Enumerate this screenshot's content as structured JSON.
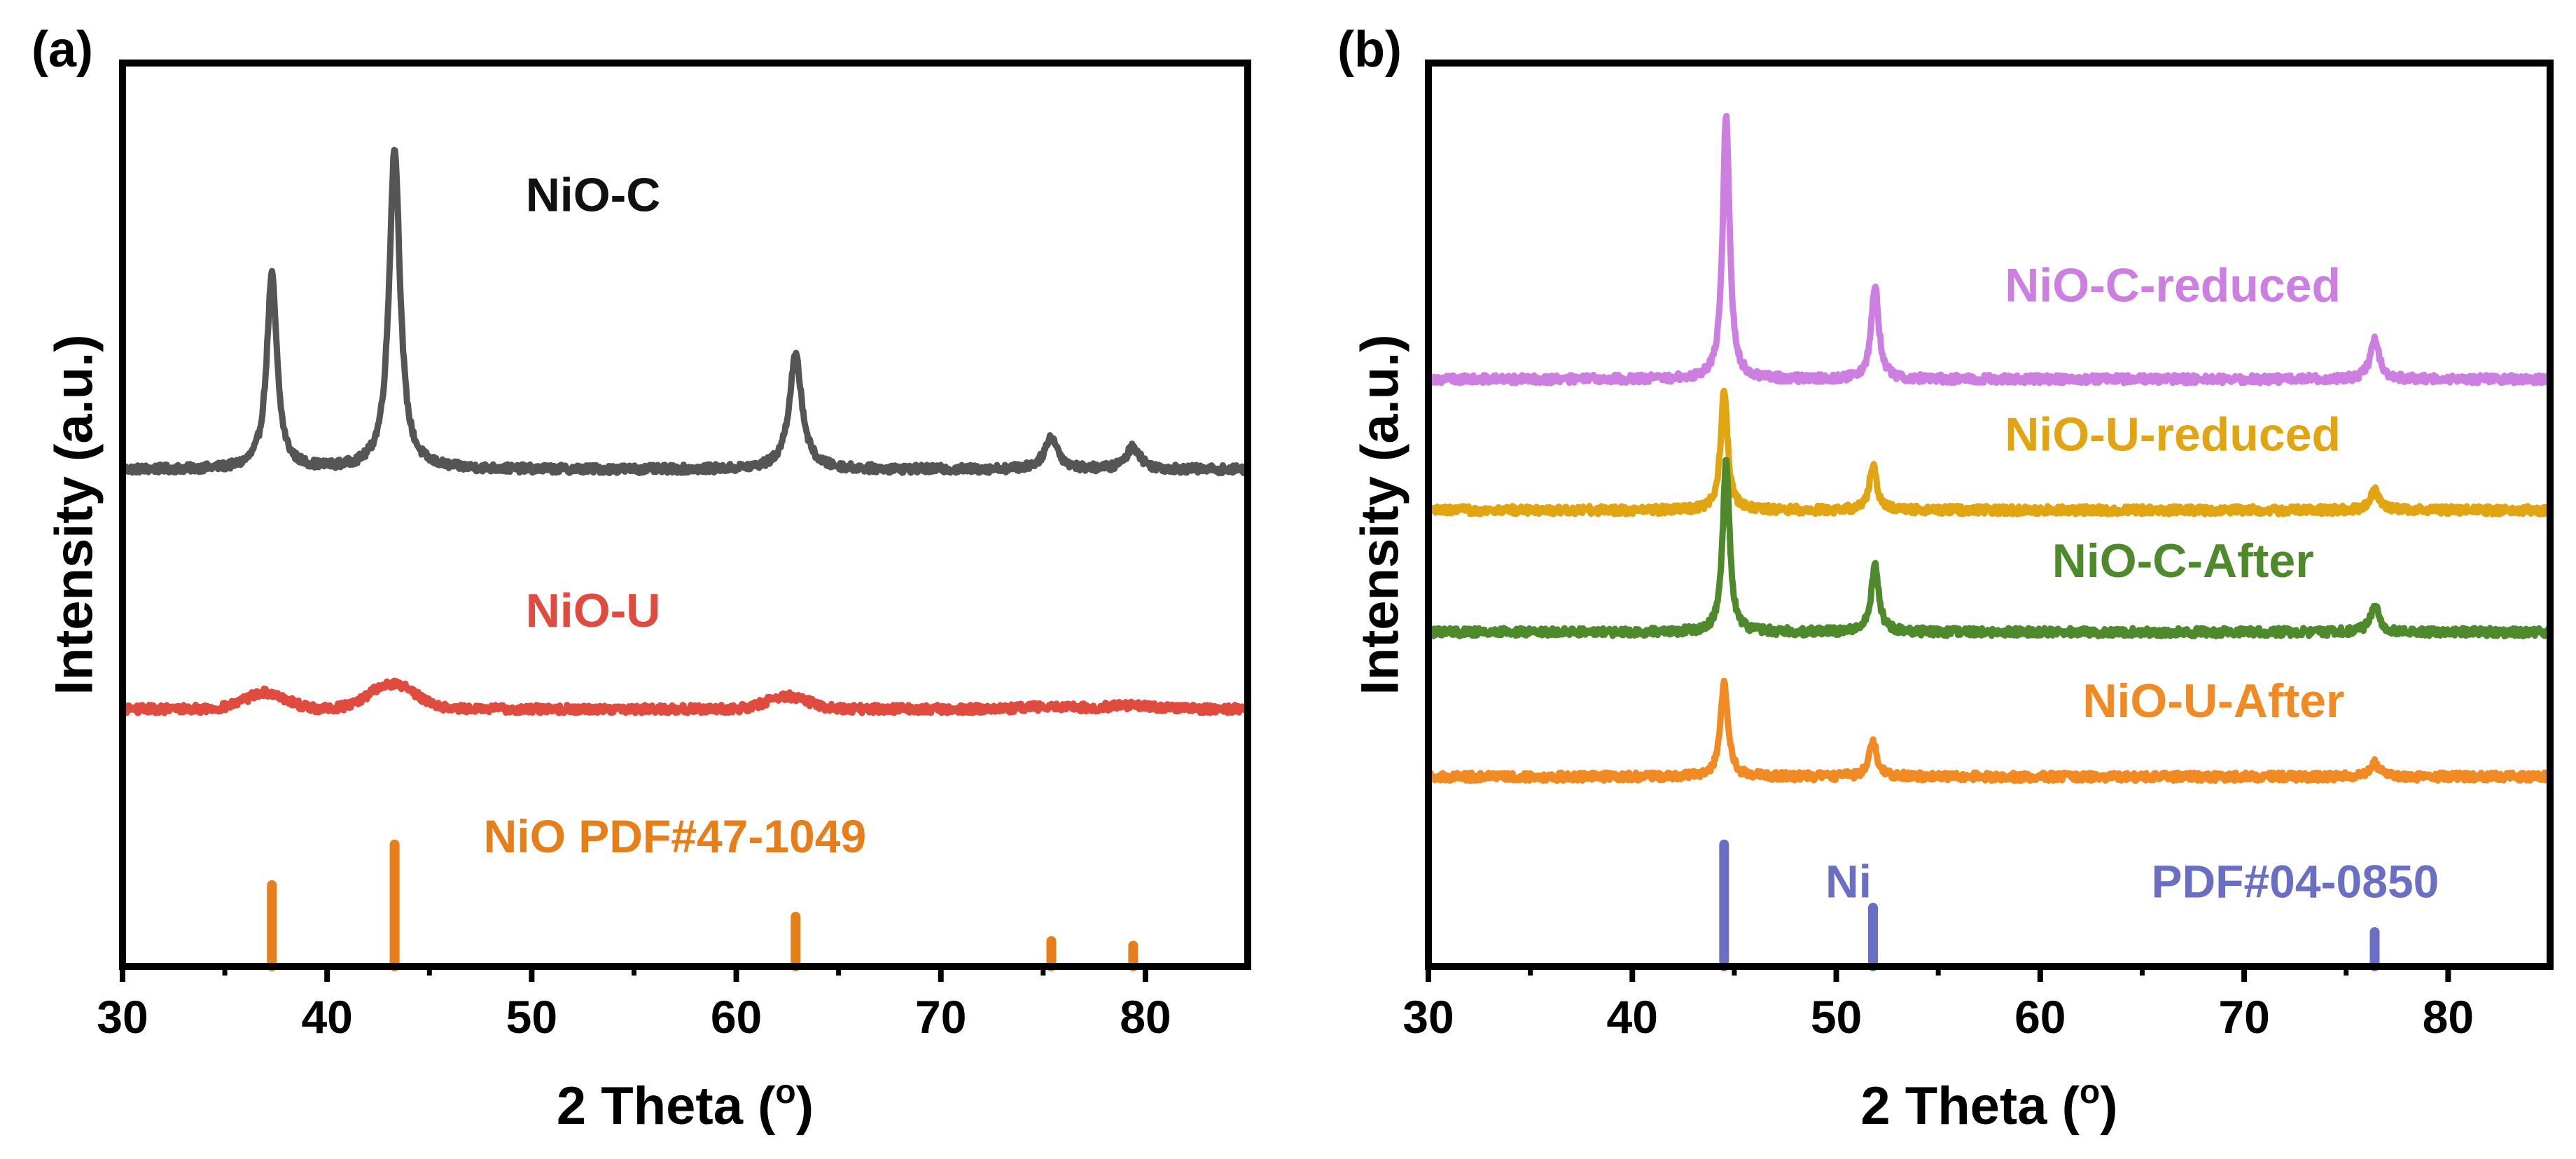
{
  "chart_data": [
    {
      "type": "line",
      "panel_label": "(a)",
      "xlabel": "2 Theta (",
      "xlabel_sup": "o",
      "xlabel_end": ")",
      "ylabel": "Intensity (a.u.)",
      "xlim": [
        30,
        85
      ],
      "ylim": [
        0,
        100
      ],
      "xticks": [
        30,
        40,
        50,
        60,
        70,
        80
      ],
      "minor_xticks": [
        35,
        45,
        55,
        65,
        75
      ],
      "series": [
        {
          "name": "NiO-C",
          "color": "#555555",
          "baseline": 55,
          "label_pos": [
            53,
            85
          ],
          "label_anchor": "middle",
          "peaks": [
            {
              "x": 37.3,
              "height": 21.5,
              "width": 0.3
            },
            {
              "x": 43.3,
              "height": 35.5,
              "width": 0.32
            },
            {
              "x": 62.9,
              "height": 12.5,
              "width": 0.38
            },
            {
              "x": 75.4,
              "height": 3.5,
              "width": 0.4
            },
            {
              "x": 79.4,
              "height": 2.5,
              "width": 0.4
            }
          ],
          "broad": []
        },
        {
          "name": "NiO-U",
          "color": "#E04B3F",
          "baseline": 28.5,
          "label_pos": [
            53,
            39
          ],
          "label_anchor": "middle",
          "peaks": [],
          "broad": [
            {
              "x": 37.0,
              "height": 1.8,
              "width": 1.4
            },
            {
              "x": 43.2,
              "height": 2.8,
              "width": 1.6
            },
            {
              "x": 62.5,
              "height": 1.4,
              "width": 1.4
            },
            {
              "x": 75.4,
              "height": 0.3,
              "width": 1.6
            },
            {
              "x": 79.3,
              "height": 0.4,
              "width": 1.6
            }
          ]
        }
      ],
      "reference": {
        "name": "NiO PDF#47-1049",
        "color": "#E67E1A",
        "label_pos": [
          57,
          14
        ],
        "label_anchor": "middle",
        "lines": [
          {
            "x": 37.3,
            "height": 9.0
          },
          {
            "x": 43.3,
            "height": 13.5
          },
          {
            "x": 62.9,
            "height": 5.5
          },
          {
            "x": 75.4,
            "height": 2.8
          },
          {
            "x": 79.4,
            "height": 2.3
          }
        ]
      }
    },
    {
      "type": "line",
      "panel_label": "(b)",
      "xlabel": "2 Theta (",
      "xlabel_sup": "o",
      "xlabel_end": ")",
      "ylabel": "Intensity (a.u.)",
      "xlim": [
        30,
        85
      ],
      "ylim": [
        0,
        100
      ],
      "xticks": [
        30,
        40,
        50,
        60,
        70,
        80
      ],
      "minor_xticks": [
        35,
        45,
        55,
        65,
        75
      ],
      "series": [
        {
          "name": "NiO-C-reduced",
          "color": "#CC7FE0",
          "baseline": 65,
          "label_pos": [
            66.5,
            75
          ],
          "label_anchor": "middle",
          "peaks": [
            {
              "x": 44.6,
              "height": 29.5,
              "width": 0.2
            },
            {
              "x": 51.9,
              "height": 10.5,
              "width": 0.22
            },
            {
              "x": 76.4,
              "height": 4.5,
              "width": 0.26
            }
          ],
          "broad": []
        },
        {
          "name": "NiO-U-reduced",
          "color": "#E2A512",
          "baseline": 50.5,
          "label_pos": [
            66.5,
            58.5
          ],
          "label_anchor": "middle",
          "peaks": [
            {
              "x": 44.5,
              "height": 13.5,
              "width": 0.2
            },
            {
              "x": 51.8,
              "height": 5.0,
              "width": 0.22
            },
            {
              "x": 76.4,
              "height": 2.2,
              "width": 0.26
            }
          ],
          "broad": []
        },
        {
          "name": "NiO-C-After",
          "color": "#4E8A2C",
          "baseline": 37,
          "label_pos": [
            67,
            44.5
          ],
          "label_anchor": "middle",
          "peaks": [
            {
              "x": 44.6,
              "height": 19.0,
              "width": 0.2
            },
            {
              "x": 51.9,
              "height": 7.5,
              "width": 0.22
            },
            {
              "x": 76.4,
              "height": 3.0,
              "width": 0.26
            }
          ],
          "broad": []
        },
        {
          "name": "NiO-U-After",
          "color": "#F28A23",
          "baseline": 21,
          "label_pos": [
            68.5,
            29
          ],
          "label_anchor": "middle",
          "peaks": [
            {
              "x": 44.5,
              "height": 10.5,
              "width": 0.22
            },
            {
              "x": 51.8,
              "height": 3.8,
              "width": 0.24
            },
            {
              "x": 76.4,
              "height": 1.6,
              "width": 0.26
            }
          ],
          "broad": []
        }
      ],
      "reference": {
        "name": "PDF#04-0850",
        "prefix": "Ni",
        "color": "#6B6FC4",
        "label_pos": [
          72.5,
          9
        ],
        "prefix_pos": [
          50.6,
          9
        ],
        "label_anchor": "middle",
        "lines": [
          {
            "x": 44.5,
            "height": 13.5
          },
          {
            "x": 51.8,
            "height": 6.5
          },
          {
            "x": 76.4,
            "height": 3.8
          }
        ]
      }
    }
  ]
}
